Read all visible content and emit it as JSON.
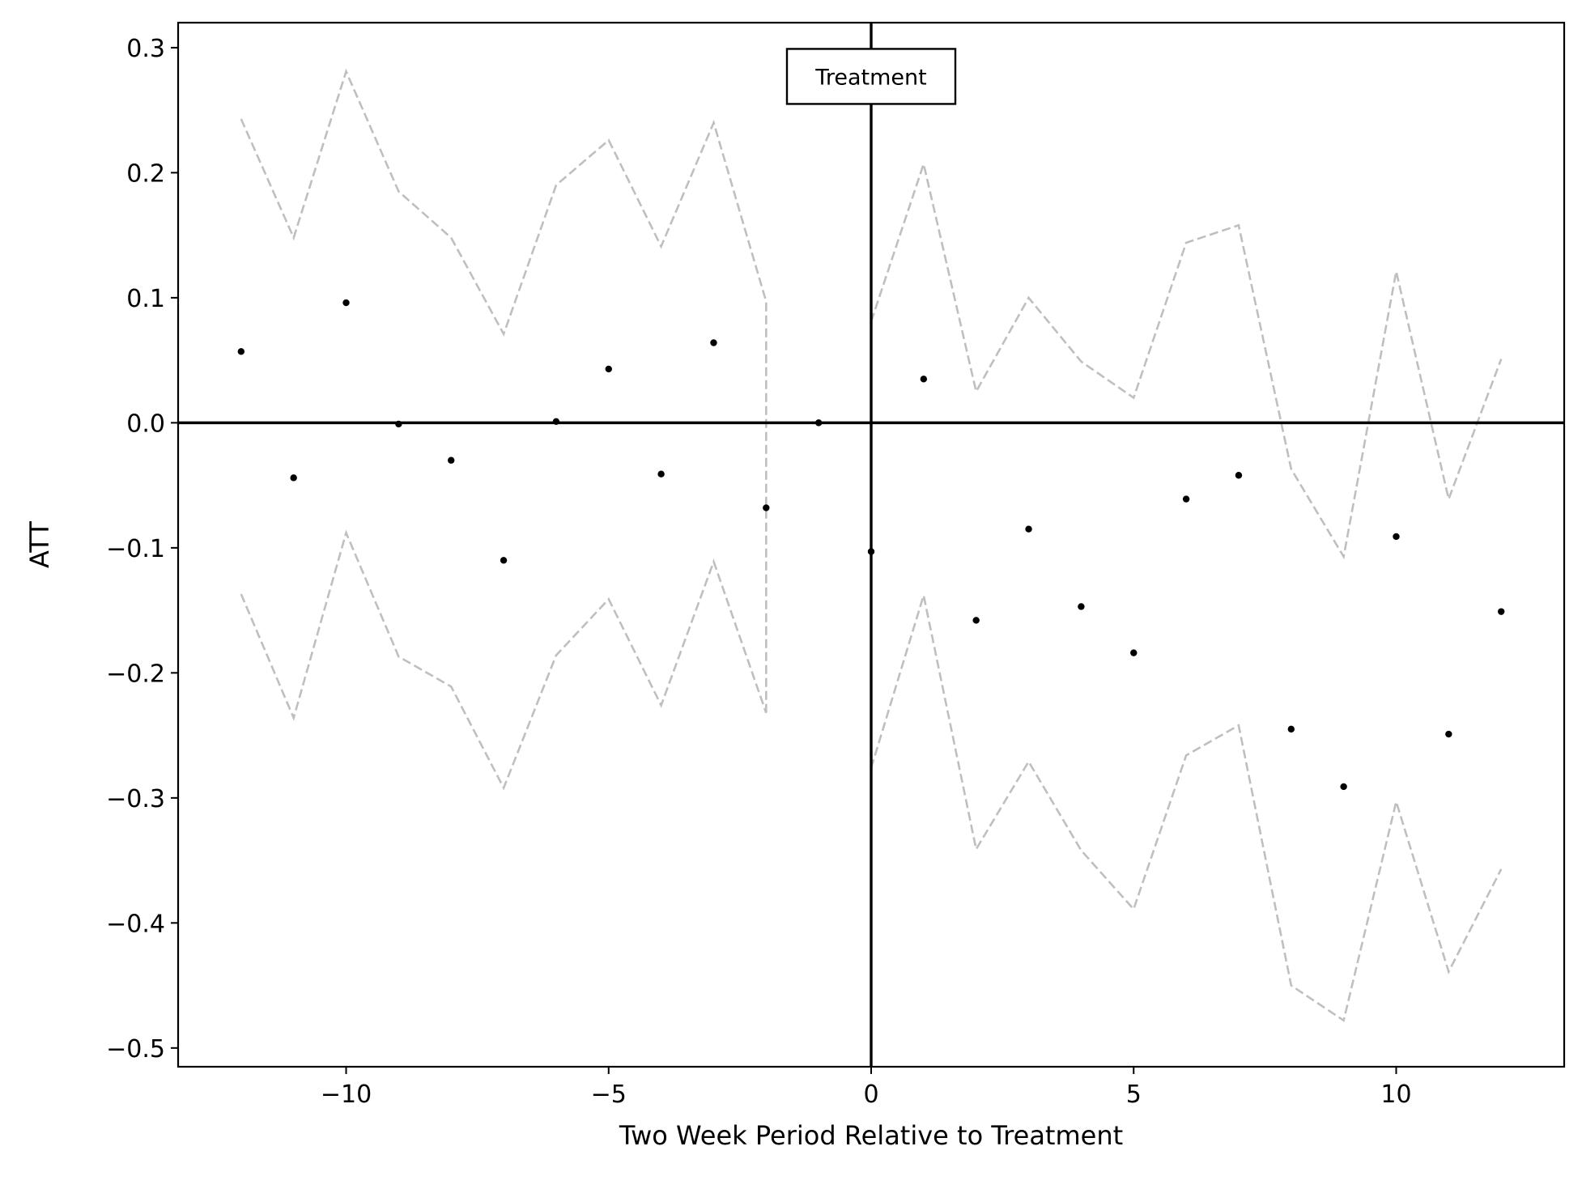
{
  "chart_data": {
    "type": "scatter",
    "title": "",
    "xlabel": "Two Week Period Relative to Treatment",
    "ylabel": "ATT",
    "xlim": [
      -13.2,
      13.2
    ],
    "ylim": [
      -0.515,
      0.32
    ],
    "xticks": [
      -10,
      -5,
      0,
      5,
      10
    ],
    "xtick_labels": [
      "−10",
      "−5",
      "0",
      "5",
      "10"
    ],
    "yticks": [
      0.3,
      0.2,
      0.1,
      0.0,
      -0.1,
      -0.2,
      -0.3,
      -0.4,
      -0.5
    ],
    "ytick_labels": [
      "0.3",
      "0.2",
      "0.1",
      "0.0",
      "−0.1",
      "−0.2",
      "−0.3",
      "−0.4",
      "−0.5"
    ],
    "grid": false,
    "reference_lines": {
      "x": 0,
      "y": 0
    },
    "annotation": {
      "text": "Treatment",
      "x": 0,
      "y": 0.277
    },
    "x": [
      -12,
      -11,
      -10,
      -9,
      -8,
      -7,
      -6,
      -5,
      -4,
      -3,
      -2,
      -1,
      0,
      1,
      2,
      3,
      4,
      5,
      6,
      7,
      8,
      9,
      10,
      11,
      12
    ],
    "series": [
      {
        "role": "estimate",
        "style": "points",
        "color": "#000000",
        "values": [
          0.057,
          -0.044,
          0.096,
          -0.001,
          -0.03,
          -0.11,
          0.001,
          0.043,
          -0.041,
          0.064,
          -0.068,
          0.0,
          -0.103,
          0.035,
          -0.158,
          -0.085,
          -0.147,
          -0.184,
          -0.061,
          -0.042,
          -0.245,
          -0.291,
          -0.091,
          -0.249,
          -0.151
        ]
      },
      {
        "role": "upper",
        "style": "dashed",
        "color": "#bfbfbf",
        "x": [
          -12,
          -11,
          -10,
          -9,
          -8,
          -7,
          -6,
          -5,
          -4,
          -3,
          -2,
          -2
        ],
        "values": [
          0.243,
          0.148,
          0.281,
          0.185,
          0.148,
          0.071,
          0.19,
          0.226,
          0.141,
          0.24,
          0.097,
          -0.232
        ]
      },
      {
        "role": "lower",
        "style": "dashed",
        "color": "#bfbfbf",
        "x": [
          -12,
          -11,
          -10,
          -9,
          -8,
          -7,
          -6,
          -5,
          -4,
          -3,
          -2
        ],
        "values": [
          -0.137,
          -0.236,
          -0.088,
          -0.187,
          -0.211,
          -0.292,
          -0.186,
          -0.141,
          -0.226,
          -0.111,
          -0.232
        ]
      },
      {
        "role": "upper",
        "style": "dashed",
        "color": "#bfbfbf",
        "x": [
          0,
          1,
          2,
          3,
          4,
          5,
          6,
          7,
          8,
          9,
          10,
          11,
          12
        ],
        "values": [
          0.081,
          0.207,
          0.025,
          0.1,
          0.049,
          0.02,
          0.144,
          0.158,
          -0.037,
          -0.107,
          0.121,
          -0.061,
          0.051
        ]
      },
      {
        "role": "lower",
        "style": "dashed",
        "color": "#bfbfbf",
        "x": [
          0,
          1,
          2,
          3,
          4,
          5,
          6,
          7,
          8,
          9,
          10,
          11,
          12
        ],
        "values": [
          -0.276,
          -0.138,
          -0.341,
          -0.271,
          -0.342,
          -0.389,
          -0.266,
          -0.242,
          -0.45,
          -0.478,
          -0.303,
          -0.439,
          -0.357
        ]
      }
    ]
  }
}
